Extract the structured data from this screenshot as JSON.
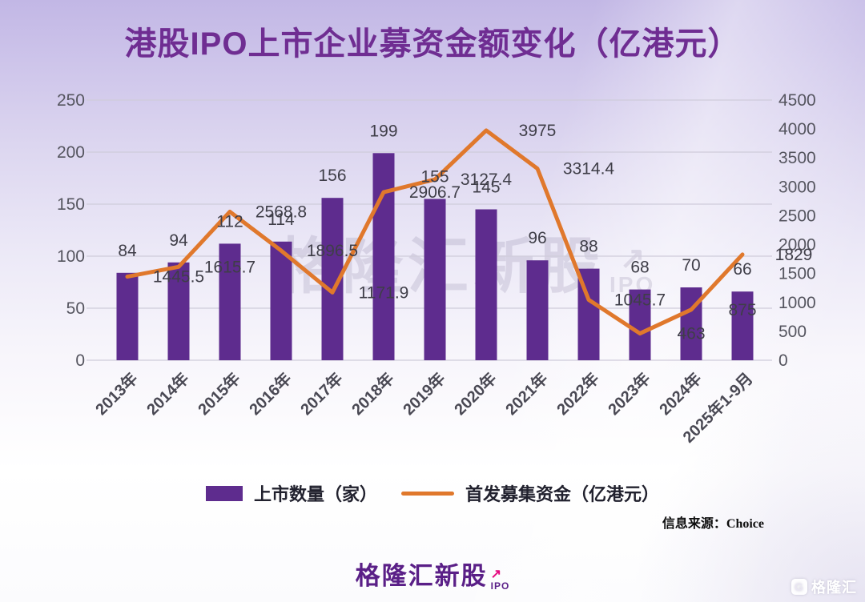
{
  "title": {
    "text": "港股IPO上市企业募资金额变化（亿港元）"
  },
  "colors": {
    "bar": "#5e2c8e",
    "line": "#e0782c",
    "title": "#6f2d92",
    "data_label": "#3f3e48",
    "axis_label": "#55555f",
    "grid": "#cfccda",
    "footer_purple": "#5a1f87",
    "footer_pink": "#e5097f"
  },
  "chart_data": {
    "type": "bar+line combo",
    "categories": [
      "2013年",
      "2014年",
      "2015年",
      "2016年",
      "2017年",
      "2018年",
      "2019年",
      "2020年",
      "2021年",
      "2022年",
      "2023年",
      "2024年",
      "2025年1-9月"
    ],
    "series": [
      {
        "name": "上市数量（家）",
        "type": "bar",
        "axis": "left",
        "values": [
          84,
          94,
          112,
          114,
          156,
          199,
          155,
          145,
          96,
          88,
          68,
          70,
          66
        ]
      },
      {
        "name": "首发募集资金（亿港元）",
        "type": "line",
        "axis": "right",
        "values": [
          1445.5,
          1615.7,
          2568.8,
          1896.5,
          1171.9,
          2906.7,
          3127.4,
          3975,
          3314.4,
          1045.7,
          463,
          875,
          1829
        ]
      }
    ],
    "left_axis": {
      "min": 0,
      "max": 250,
      "step": 50
    },
    "right_axis": {
      "min": 0,
      "max": 4500,
      "step": 500
    },
    "grid": true,
    "data_labels": true,
    "legend_position": "bottom"
  },
  "legend": {
    "bar_label": "上市数量（家）",
    "line_label": "首发募集资金（亿港元）"
  },
  "source_note": {
    "text": "信息来源：Choice"
  },
  "chart_watermark": {
    "text": "格隆汇新股",
    "arrow": "↗",
    "sub": "IPO"
  },
  "footer_logo": {
    "text": "格隆汇新股",
    "arrow": "↗",
    "sub": "IPO"
  },
  "corner_logo": {
    "g": "G",
    "text": "格隆汇"
  }
}
